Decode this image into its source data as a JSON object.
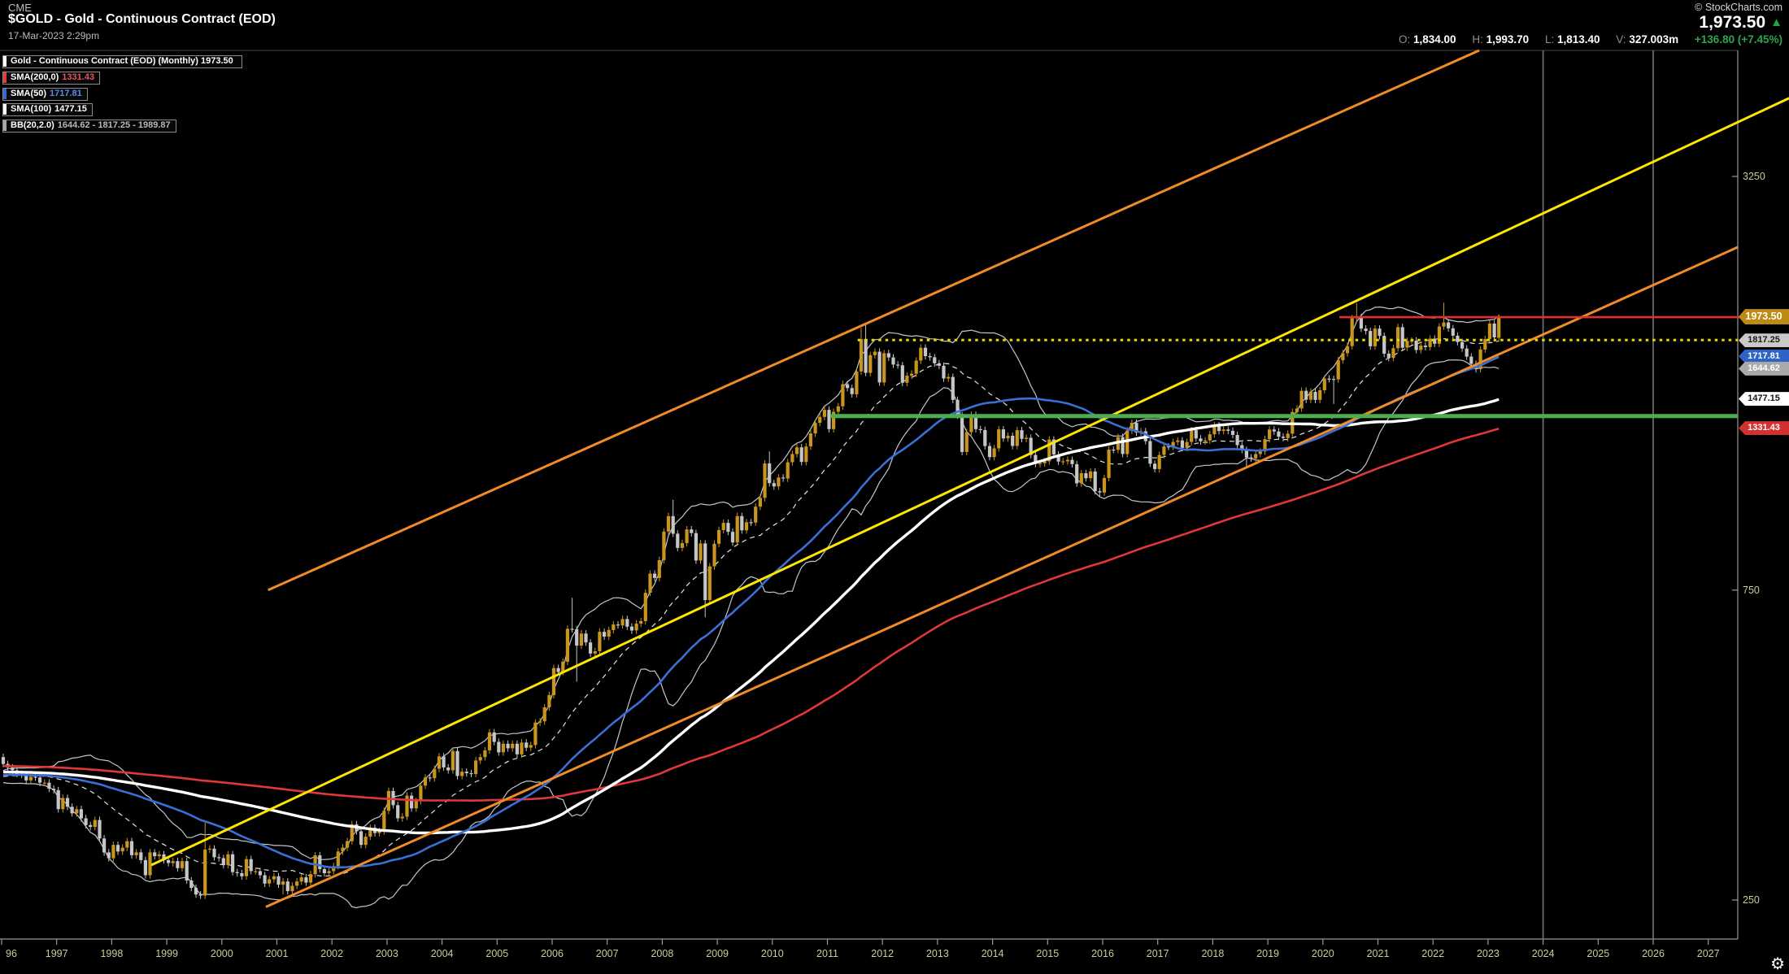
{
  "header": {
    "exchange": "CME",
    "title": "$GOLD - Gold - Continuous Contract (EOD)",
    "datetime": "17-Mar-2023 2:29pm",
    "copyright": "© StockCharts.com",
    "last_price": "1,973.50",
    "direction_icon": "▲",
    "ohlc": {
      "o_label": "O:",
      "o": "1,834.00",
      "h_label": "H:",
      "h": "1,993.70",
      "l_label": "L:",
      "l": "1,813.40",
      "v_label": "V:",
      "v": "327.003m",
      "change": "+136.80 (+7.45%)"
    }
  },
  "legend": [
    {
      "label": "Gold - Continuous Contract (EOD) (Monthly) 1973.50",
      "value": "",
      "bar": "#ffffff",
      "value_color": "#ffffff"
    },
    {
      "label": "SMA(200,0)",
      "value": "1331.43",
      "bar": "#e03c3c",
      "value_color": "#e45555"
    },
    {
      "label": "SMA(50)",
      "value": "1717.81",
      "bar": "#3668d0",
      "value_color": "#5d8bee"
    },
    {
      "label": "SMA(100)",
      "value": "1477.15",
      "bar": "#ffffff",
      "value_color": "#ffffff"
    },
    {
      "label": "BB(20,2.0)",
      "value": "1644.62 - 1817.25 - 1989.87",
      "bar": "#a8a8a8",
      "value_color": "#b9b9b9"
    }
  ],
  "footer": {
    "gear_icon": "⚙"
  },
  "chart_data": {
    "type": "candlestick",
    "symbol": "$GOLD",
    "timeframe": "Monthly",
    "title": "Gold - Continuous Contract (EOD)",
    "last_close": 1973.5,
    "x_axis": {
      "start_year": 1996,
      "end_year": 2027,
      "labels": [
        "96",
        "1997",
        "1998",
        "1999",
        "2000",
        "2001",
        "2002",
        "2003",
        "2004",
        "2005",
        "2006",
        "2007",
        "2008",
        "2009",
        "2010",
        "2011",
        "2012",
        "2013",
        "2014",
        "2015",
        "2016",
        "2017",
        "2018",
        "2019",
        "2020",
        "2021",
        "2022",
        "2023",
        "2024",
        "2025",
        "2026",
        "2027"
      ]
    },
    "y_axis": {
      "scale": "log",
      "ticks": [
        {
          "text": "3250",
          "price": 3250
        },
        {
          "text": "750",
          "price": 750
        },
        {
          "text": "250",
          "price": 250
        }
      ],
      "visible_price_range": [
        218,
        5080
      ]
    },
    "closes_by_year": {
      "1996": [
        405,
        400,
        396,
        391,
        390,
        382,
        387,
        386,
        379,
        379,
        371,
        369
      ],
      "1997": [
        345,
        359,
        348,
        340,
        345,
        334,
        326,
        324,
        332,
        311,
        296,
        290
      ],
      "1998": [
        304,
        297,
        301,
        308,
        293,
        296,
        288,
        273,
        296,
        292,
        294,
        288
      ],
      "1999": [
        285,
        287,
        280,
        287,
        268,
        261,
        255,
        254,
        299,
        300,
        291,
        290
      ],
      "2000": [
        283,
        294,
        276,
        275,
        272,
        289,
        277,
        277,
        273,
        265,
        269,
        272
      ],
      "2001": [
        264,
        267,
        258,
        263,
        267,
        271,
        266,
        274,
        293,
        279,
        275,
        277
      ],
      "2002": [
        282,
        297,
        301,
        308,
        327,
        319,
        304,
        313,
        323,
        317,
        319,
        343
      ],
      "2003": [
        368,
        350,
        334,
        336,
        362,
        346,
        355,
        375,
        386,
        385,
        398,
        416
      ],
      "2004": [
        400,
        396,
        424,
        388,
        394,
        392,
        391,
        410,
        415,
        425,
        453,
        438
      ],
      "2005": [
        422,
        435,
        428,
        435,
        419,
        437,
        429,
        433,
        469,
        471,
        495,
        517
      ],
      "2006": [
        569,
        561,
        582,
        654,
        653,
        616,
        643,
        623,
        599,
        604,
        647,
        636
      ],
      "2007": [
        651,
        664,
        662,
        677,
        659,
        650,
        666,
        672,
        743,
        795,
        783,
        834
      ],
      "2008": [
        923,
        975,
        916,
        871,
        886,
        930,
        918,
        833,
        885,
        724,
        816,
        884
      ],
      "2009": [
        928,
        952,
        922,
        888,
        975,
        927,
        954,
        953,
        1008,
        1040,
        1175,
        1096
      ],
      "2010": [
        1083,
        1118,
        1114,
        1180,
        1215,
        1244,
        1181,
        1248,
        1307,
        1357,
        1386,
        1421
      ],
      "2011": [
        1327,
        1411,
        1439,
        1556,
        1535,
        1502,
        1628,
        1826,
        1620,
        1725,
        1746,
        1566
      ],
      "2012": [
        1737,
        1711,
        1668,
        1664,
        1564,
        1604,
        1615,
        1692,
        1771,
        1719,
        1712,
        1676
      ],
      "2013": [
        1661,
        1588,
        1597,
        1472,
        1393,
        1224,
        1313,
        1396,
        1327,
        1323,
        1250,
        1202
      ],
      "2014": [
        1240,
        1326,
        1284,
        1296,
        1250,
        1322,
        1282,
        1287,
        1211,
        1173,
        1176,
        1184
      ],
      "2015": [
        1279,
        1213,
        1183,
        1184,
        1190,
        1172,
        1095,
        1135,
        1115,
        1142,
        1065,
        1060
      ],
      "2016": [
        1116,
        1234,
        1233,
        1290,
        1215,
        1320,
        1357,
        1311,
        1317,
        1272,
        1174,
        1152
      ],
      "2017": [
        1211,
        1248,
        1247,
        1268,
        1275,
        1242,
        1268,
        1322,
        1284,
        1271,
        1275,
        1303
      ],
      "2018": [
        1345,
        1318,
        1325,
        1319,
        1300,
        1254,
        1233,
        1200,
        1196,
        1215,
        1226,
        1281
      ],
      "2019": [
        1325,
        1316,
        1292,
        1286,
        1306,
        1410,
        1428,
        1520,
        1473,
        1515,
        1472,
        1523
      ],
      "2020": [
        1587,
        1585,
        1583,
        1694,
        1737,
        1781,
        1966,
        1974,
        1895,
        1879,
        1780,
        1895
      ],
      "2021": [
        1847,
        1734,
        1708,
        1768,
        1905,
        1771,
        1814,
        1816,
        1757,
        1784,
        1775,
        1829
      ],
      "2022": [
        1796,
        1909,
        1937,
        1897,
        1848,
        1807,
        1766,
        1716,
        1672,
        1641,
        1760,
        1826
      ],
      "2023": [
        1929,
        1837,
        1973.5
      ]
    },
    "wick_overrides": {
      "0": {
        "open": 415
      },
      "42": {
        "low": 252
      },
      "44": {
        "high": 329
      },
      "61": {
        "low": 255
      },
      "124": {
        "high": 730
      },
      "125": {
        "low": 542
      },
      "146": {
        "high": 1033
      },
      "153": {
        "low": 681
      },
      "167": {
        "high": 1226
      },
      "187": {
        "high": 1900
      },
      "188": {
        "high": 1920
      },
      "239": {
        "low": 1045
      },
      "271": {
        "low": 1160
      },
      "290": {
        "low": 1451
      },
      "295": {
        "high": 2075
      },
      "314": {
        "high": 2078
      },
      "325": {
        "low": 1810
      },
      "326": {
        "open": 1834,
        "high": 1993.7,
        "low": 1813.4
      }
    },
    "indicators": [
      {
        "name": "SMA",
        "period": 200,
        "color": "#e03838",
        "width": 2.6,
        "last": 1331.43
      },
      {
        "name": "SMA",
        "period": 100,
        "color": "#ffffff",
        "width": 3.4,
        "last": 1477.15
      },
      {
        "name": "SMA",
        "period": 50,
        "color": "#3b6fd6",
        "width": 2.6,
        "last": 1717.81
      },
      {
        "name": "BB",
        "period": 20,
        "stdev": 2,
        "color": "#c3c7cb",
        "last_lower": 1644.62,
        "last_mid": 1817.25,
        "last_upper": 1989.87
      }
    ],
    "annotations": {
      "trendlines": [
        {
          "name": "support-yellow",
          "color": "#ffe600",
          "width": 3,
          "p1": {
            "year": 1998.72,
            "price": 283
          },
          "p2": {
            "year": 2028.47,
            "price": 4290
          }
        },
        {
          "name": "channel-upper-orange",
          "color": "#f08c28",
          "width": 3,
          "p1": {
            "year": 2000.84,
            "price": 750
          },
          "p2": {
            "year": 2022.84,
            "price": 5080
          }
        },
        {
          "name": "channel-lower-orange",
          "color": "#f08c28",
          "width": 3,
          "p1": {
            "year": 2000.8,
            "price": 244
          },
          "p2": {
            "year": 2027.54,
            "price": 2530
          }
        }
      ],
      "hlines": [
        {
          "name": "resistance-red",
          "color": "#e03030",
          "width": 2.6,
          "price": 1973.5,
          "from_year": 2020.3,
          "to_year": 2027.6,
          "style": "solid"
        },
        {
          "name": "level-yellow-dotted",
          "color": "#e6d800",
          "width": 3,
          "price": 1820,
          "from_year": 2011.55,
          "to_year": 2027.54,
          "style": "dotted"
        },
        {
          "name": "level-green",
          "color": "#4cae4f",
          "width": 5,
          "price": 1390,
          "from_year": 2011.05,
          "to_year": 2027.54,
          "style": "solid"
        }
      ],
      "vlines": [
        {
          "name": "gridline-2024",
          "year": 2024,
          "color": "#6b6b6b"
        },
        {
          "name": "gridline-2026",
          "year": 2026,
          "color": "#6b6b6b"
        }
      ]
    },
    "right_labels": [
      {
        "text": "1973.50",
        "price": 1973.5,
        "bg": "#bd8a14",
        "fg": "#ffffff",
        "big": true
      },
      {
        "text": "1817.25",
        "price": 1817.25,
        "bg": "#c9c9c9",
        "fg": "#1a1a1a",
        "big": false
      },
      {
        "text": "1717.81",
        "price": 1717.81,
        "bg": "#2e64c8",
        "fg": "#ffffff",
        "big": false
      },
      {
        "text": "1644.62",
        "price": 1644.62,
        "bg": "#a9a9a9",
        "fg": "#ffffff",
        "big": false
      },
      {
        "text": "1477.15",
        "price": 1477.15,
        "bg": "#ffffff",
        "fg": "#111111",
        "big": false
      },
      {
        "text": "1331.43",
        "price": 1331.43,
        "bg": "#d43030",
        "fg": "#ffffff",
        "big": false
      }
    ],
    "colors": {
      "background": "#000000",
      "up": "#c9951d",
      "down": "#c6c6c6",
      "axis_text": "#cccc99",
      "axis_line": "#9a9a9a",
      "top_border": "#444444"
    }
  }
}
